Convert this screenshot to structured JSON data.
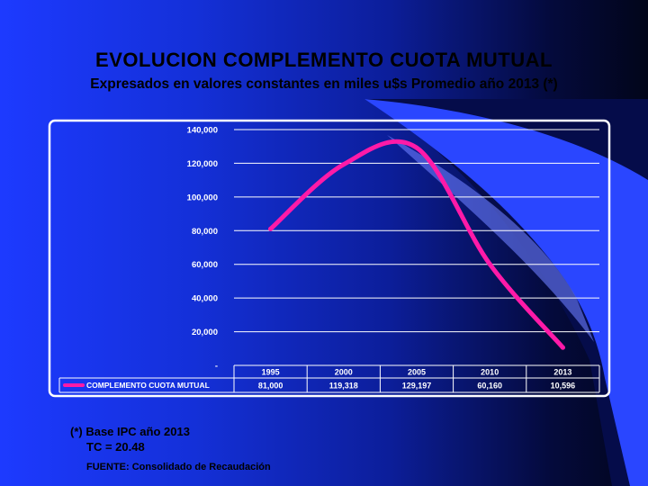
{
  "title": "EVOLUCION  COMPLEMENTO CUOTA MUTUAL",
  "subtitle": "Expresados  en valores  constantes  en miles  u$s Promedio año 2013 (*)",
  "chart_data": {
    "type": "line",
    "title": "",
    "xlabel": "",
    "ylabel": "",
    "categories": [
      "1995",
      "2000",
      "2005",
      "2010",
      "2013"
    ],
    "y_tick_labels": [
      "140,000",
      "120,000",
      "100,000",
      "80,000",
      "60,000",
      "40,000",
      "20,000",
      "-"
    ],
    "ylim": [
      0,
      140000
    ],
    "grid": true,
    "legend": "table-below",
    "series": [
      {
        "name": "COMPLEMENTO CUOTA MUTUAL",
        "color": "#ff1aa8",
        "values": [
          81000,
          119318,
          129197,
          60160,
          10596
        ],
        "labels": [
          "81,000",
          "119,318",
          "129,197",
          "60,160",
          "10,596"
        ]
      }
    ]
  },
  "footnotes": {
    "base": "(*) Base IPC año 2013",
    "tc": "TC  =  20.48",
    "source": "FUENTE: Consolidado de Recaudación"
  }
}
